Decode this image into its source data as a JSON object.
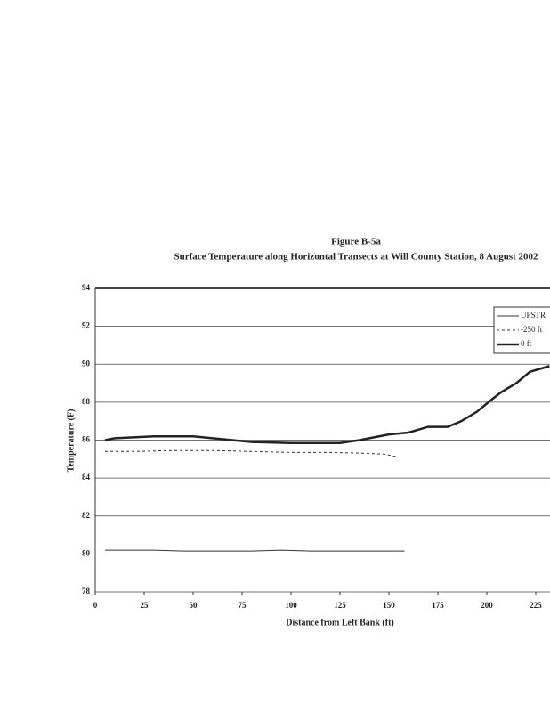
{
  "chart_data": {
    "type": "line",
    "title": "Figure B-5a",
    "subtitle": "Surface Temperature along Horizontal Transects at Will County Station, 8 August 2002",
    "xlabel": "Distance from Left Bank (ft)",
    "ylabel": "Temperature (F)",
    "xlim": [
      0,
      232
    ],
    "xticks": [
      0,
      25,
      50,
      75,
      100,
      125,
      150,
      175,
      200,
      225
    ],
    "ylim": [
      78,
      94
    ],
    "yticks": [
      78,
      80,
      82,
      84,
      86,
      88,
      90,
      92,
      94
    ],
    "grid": true,
    "legend": "upper right",
    "series": [
      {
        "name": "UPSTR",
        "color": "#333333",
        "style": "solid",
        "width": 1,
        "x": [
          5,
          15,
          30,
          45,
          60,
          80,
          95,
          110,
          125,
          140,
          158
        ],
        "values": [
          80.2,
          80.2,
          80.2,
          80.15,
          80.15,
          80.15,
          80.2,
          80.15,
          80.15,
          80.15,
          80.15
        ]
      },
      {
        "name": "-250 ft",
        "color": "#333333",
        "style": "dashed",
        "width": 1,
        "x": [
          5,
          20,
          40,
          60,
          80,
          100,
          120,
          140,
          148,
          155
        ],
        "values": [
          85.4,
          85.4,
          85.45,
          85.45,
          85.4,
          85.35,
          85.35,
          85.3,
          85.25,
          85.1
        ]
      },
      {
        "name": "0 ft",
        "color": "#222222",
        "style": "solid",
        "width": 2.5,
        "x": [
          5,
          10,
          30,
          50,
          60,
          70,
          80,
          100,
          125,
          135,
          140,
          150,
          160,
          170,
          180,
          187,
          195,
          202,
          207,
          215,
          222,
          232
        ],
        "values": [
          86,
          86.1,
          86.2,
          86.2,
          86.1,
          86,
          85.9,
          85.85,
          85.85,
          86,
          86.1,
          86.3,
          86.4,
          86.7,
          86.7,
          87,
          87.5,
          88.1,
          88.5,
          89,
          89.6,
          89.9
        ]
      }
    ]
  }
}
